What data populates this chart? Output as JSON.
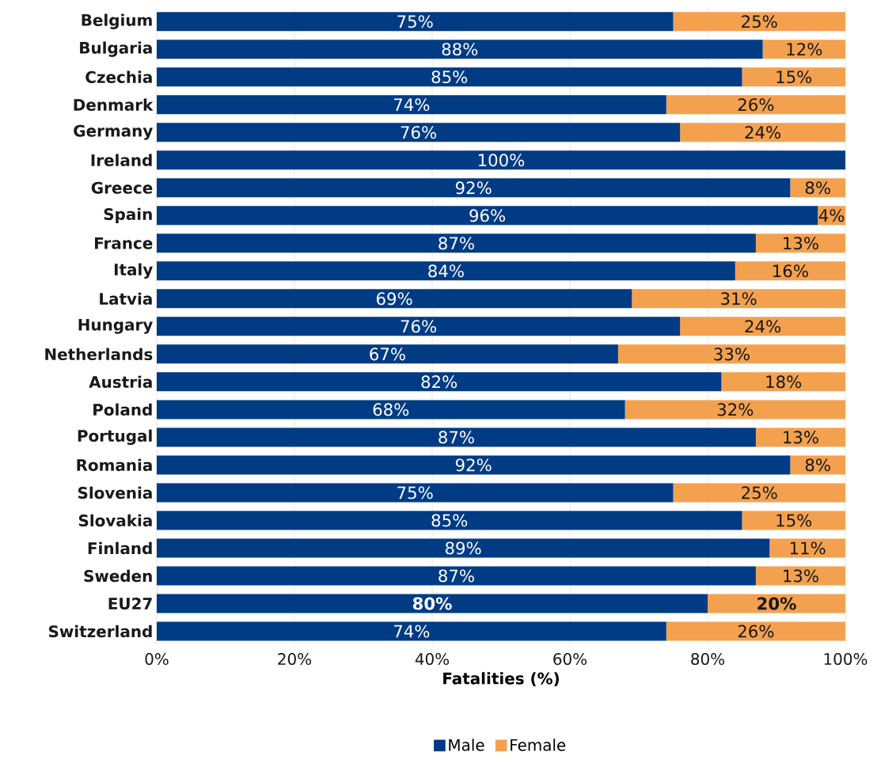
{
  "chart_data": {
    "type": "bar",
    "orientation": "horizontal",
    "stacked": true,
    "xlabel": "Fatalities (%)",
    "categories": [
      "Belgium",
      "Bulgaria",
      "Czechia",
      "Denmark",
      "Germany",
      "Ireland",
      "Greece",
      "Spain",
      "France",
      "Italy",
      "Latvia",
      "Hungary",
      "Netherlands",
      "Austria",
      "Poland",
      "Portugal",
      "Romania",
      "Slovenia",
      "Slovakia",
      "Finland",
      "Sweden",
      "EU27",
      "Switzerland"
    ],
    "series": [
      {
        "name": "Male",
        "color": "#003b84",
        "values": [
          75,
          88,
          85,
          74,
          76,
          100,
          92,
          96,
          87,
          84,
          69,
          76,
          67,
          82,
          68,
          87,
          92,
          75,
          85,
          89,
          87,
          80,
          74
        ],
        "value_labels": [
          "75%",
          "88%",
          "85%",
          "74%",
          "76%",
          "100%",
          "92%",
          "96%",
          "87%",
          "84%",
          "69%",
          "76%",
          "67%",
          "82%",
          "68%",
          "87%",
          "92%",
          "75%",
          "85%",
          "89%",
          "87%",
          "**80%**",
          "74%"
        ]
      },
      {
        "name": "Female",
        "color": "#f4a14f",
        "values": [
          25,
          12,
          15,
          26,
          24,
          0,
          8,
          4,
          13,
          16,
          31,
          24,
          33,
          18,
          32,
          13,
          8,
          25,
          15,
          11,
          13,
          20,
          26
        ],
        "value_labels": [
          "25%",
          "12%",
          "15%",
          "26%",
          "24%",
          null,
          "8%",
          "4%",
          "13%",
          "16%",
          "31%",
          "24%",
          "33%",
          "18%",
          "32%",
          "13%",
          "8%",
          "25%",
          "15%",
          "11%",
          "13%",
          "**20%**",
          "26%"
        ]
      }
    ],
    "xlim": [
      0,
      100
    ],
    "xticks": [
      {
        "value": 0,
        "label": "0%"
      },
      {
        "value": 20,
        "label": "20%"
      },
      {
        "value": 40,
        "label": "40%"
      },
      {
        "value": 60,
        "label": "60%"
      },
      {
        "value": 80,
        "label": "80%"
      },
      {
        "value": 100,
        "label": "100%"
      }
    ],
    "grid": "x",
    "legend": "bottom"
  }
}
